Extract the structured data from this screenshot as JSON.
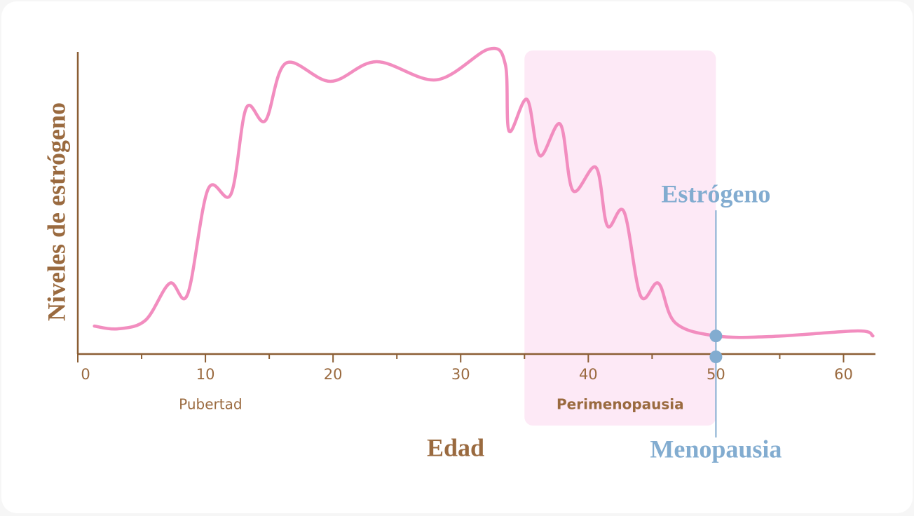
{
  "chart_data": {
    "type": "line",
    "y_label": "Niveles de estrógeno",
    "x_label": "Edad",
    "x": [
      1.3,
      3.1,
      5.3,
      7.2,
      8.6,
      10.2,
      12.0,
      13.2,
      14.7,
      16.3,
      19.8,
      23.4,
      28.1,
      32.2,
      33.5,
      33.8,
      35.2,
      36.2,
      37.8,
      38.8,
      40.6,
      41.5,
      42.8,
      44.1,
      45.5,
      46.8,
      50.0,
      54.5,
      61.1,
      62.3
    ],
    "series": [
      {
        "name": "Estrógeno",
        "color": "#f28dbf",
        "values": [
          11.1,
          10.0,
          13.4,
          28.1,
          23.7,
          65.4,
          63.5,
          97.7,
          92.7,
          115.5,
          108.3,
          116.1,
          108.9,
          121.1,
          115.0,
          88.5,
          101.1,
          78.8,
          91.3,
          64.9,
          74.1,
          50.9,
          56.5,
          23.1,
          28.1,
          12.5,
          7.2,
          7.0,
          9.2,
          7.2
        ]
      }
    ],
    "xlim": [
      0,
      62.5
    ],
    "xticks": [
      0,
      10,
      20,
      30,
      40,
      50,
      60
    ],
    "xminorticks": [
      5,
      15,
      25,
      35,
      45,
      55
    ],
    "ylim": [
      0,
      120
    ],
    "annotations": [
      {
        "text": "Pubertad",
        "x": 10.4
      },
      {
        "text": "Perimenopausia",
        "x": 42.5
      }
    ],
    "highlight": {
      "range": [
        35,
        50
      ],
      "color": "#fde9f6"
    },
    "marker": {
      "x": 50,
      "y": 7.2,
      "label": "Menopausia",
      "color": "#82acd0"
    }
  }
}
